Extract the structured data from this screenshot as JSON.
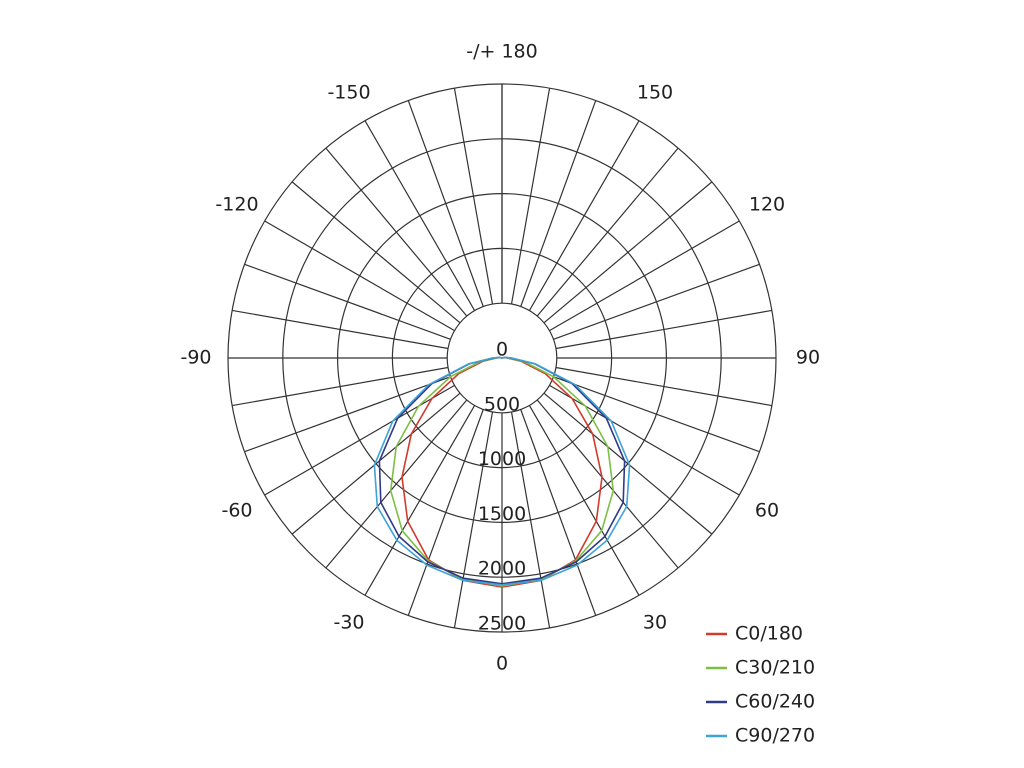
{
  "chart_data": {
    "type": "polar",
    "theta": [
      -180,
      -170,
      -160,
      -150,
      -140,
      -130,
      -120,
      -110,
      -100,
      -90,
      -80,
      -70,
      -60,
      -50,
      -40,
      -30,
      -20,
      -10,
      0,
      10,
      20,
      30,
      40,
      50,
      60,
      70,
      80,
      90,
      100,
      110,
      120,
      130,
      140,
      150,
      160,
      170,
      180
    ],
    "series": [
      {
        "name": "C0/180",
        "color": "#d23a2c",
        "values": [
          0,
          0,
          0,
          0,
          0,
          0,
          0,
          0,
          20,
          50,
          180,
          420,
          740,
          1080,
          1420,
          1720,
          1960,
          2060,
          2090,
          2060,
          1960,
          1720,
          1420,
          1080,
          740,
          420,
          180,
          50,
          20,
          0,
          0,
          0,
          0,
          0,
          0,
          0,
          0
        ]
      },
      {
        "name": "C30/210",
        "color": "#7dbf45",
        "values": [
          0,
          0,
          0,
          0,
          0,
          0,
          0,
          0,
          20,
          60,
          210,
          500,
          880,
          1260,
          1580,
          1820,
          1970,
          2050,
          2080,
          2050,
          1970,
          1820,
          1580,
          1260,
          880,
          500,
          210,
          60,
          20,
          0,
          0,
          0,
          0,
          0,
          0,
          0,
          0
        ]
      },
      {
        "name": "C60/240",
        "color": "#2f3b86",
        "values": [
          0,
          0,
          0,
          0,
          0,
          0,
          0,
          0,
          30,
          80,
          300,
          680,
          1100,
          1460,
          1720,
          1880,
          1980,
          2040,
          2060,
          2040,
          1980,
          1880,
          1720,
          1460,
          1100,
          680,
          300,
          80,
          30,
          0,
          0,
          0,
          0,
          0,
          0,
          0,
          0
        ]
      },
      {
        "name": "C90/270",
        "color": "#3ea3d9",
        "values": [
          0,
          0,
          0,
          0,
          0,
          0,
          0,
          0,
          30,
          90,
          310,
          710,
          1150,
          1520,
          1770,
          1920,
          2010,
          2060,
          2070,
          2060,
          2010,
          1920,
          1770,
          1520,
          1150,
          710,
          310,
          90,
          30,
          0,
          0,
          0,
          0,
          0,
          0,
          0,
          0
        ]
      }
    ],
    "rlim": [
      0,
      2500
    ],
    "rticks": [
      0,
      500,
      1000,
      1500,
      2000,
      2500
    ],
    "thetaticks": [
      0,
      30,
      60,
      90,
      120,
      150,
      {
        "value": 180,
        "label": "-/+ 180"
      },
      -150,
      -120,
      -90,
      -60,
      -30
    ],
    "legend": "lower right"
  }
}
